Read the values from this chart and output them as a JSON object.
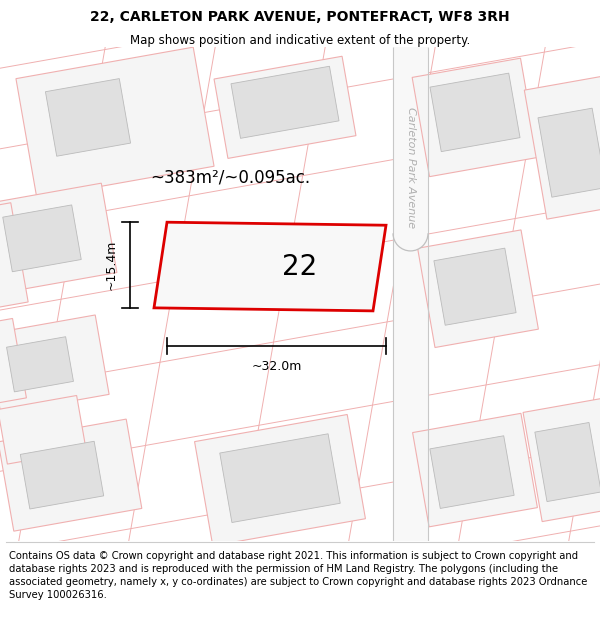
{
  "title": "22, CARLETON PARK AVENUE, PONTEFRACT, WF8 3RH",
  "subtitle": "Map shows position and indicative extent of the property.",
  "footer": "Contains OS data © Crown copyright and database right 2021. This information is subject to Crown copyright and database rights 2023 and is reproduced with the permission of HM Land Registry. The polygons (including the associated geometry, namely x, y co-ordinates) are subject to Crown copyright and database rights 2023 Ordnance Survey 100026316.",
  "area_label": "~383m²/~0.095ac.",
  "width_label": "~32.0m",
  "height_label": "~15.4m",
  "number_label": "22",
  "street_label": "Carleton Park Avenue",
  "bg_color": "#ffffff",
  "map_bg": "#ffffff",
  "plot_border_color": "#dd0000",
  "building_fill": "#e0e0e0",
  "building_edge": "#bbbbbb",
  "lot_edge": "#f0b0b0",
  "road_border": "#c0c0c0",
  "street_text_color": "#b0b0b0",
  "title_fontsize": 10,
  "subtitle_fontsize": 8.5,
  "footer_fontsize": 7.2,
  "area_fontsize": 12,
  "dim_fontsize": 9,
  "number_fontsize": 20
}
